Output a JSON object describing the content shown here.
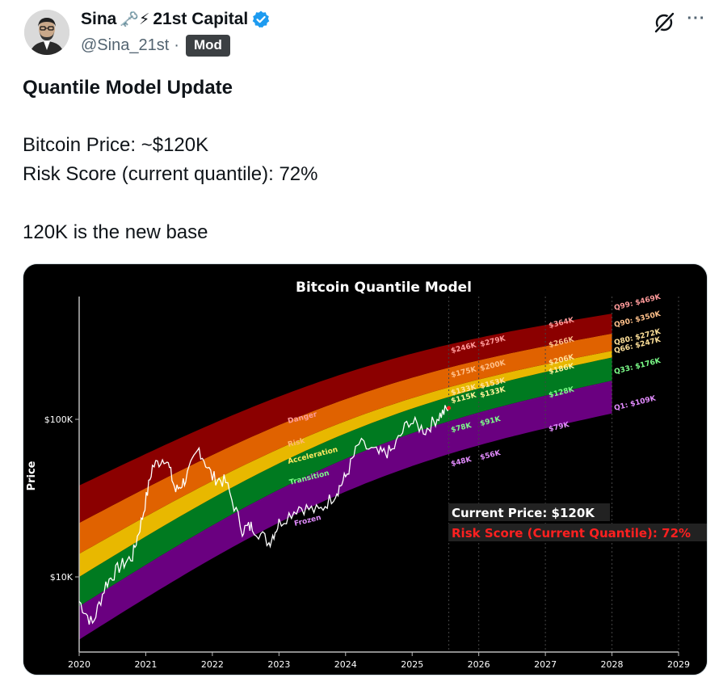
{
  "author": {
    "name": "Sina",
    "name_emojis": "🗝️⚡",
    "org": "21st Capital",
    "handle": "@Sina_21st",
    "separator": "·",
    "badge": "Mod"
  },
  "icons": {
    "verified": "verified-badge-icon",
    "grok": "grok-icon",
    "more": "more-icon",
    "more_glyph": "···"
  },
  "tweet": {
    "title": "Quantile Model Update",
    "line1": "Bitcoin Price: ~$120K",
    "line2": "Risk Score (current quantile): 72%",
    "line3": "120K is the new base"
  },
  "colors": {
    "verified": "#1d9bf0",
    "danger": "#8b0000",
    "risk": "#e06200",
    "acceleration": "#e8b800",
    "transition": "#007a20",
    "frozen": "#6a0080",
    "risk_text": "#ff2020"
  },
  "chart_data": {
    "type": "area",
    "title": "Bitcoin Quantile Model",
    "ylabel": "Price",
    "xlabel": "",
    "y_scale": "log",
    "x_ticks": [
      "2020",
      "2021",
      "2022",
      "2023",
      "2024",
      "2025",
      "2026",
      "2027",
      "2028",
      "2029"
    ],
    "y_ticks": [
      "$10K",
      "$100K"
    ],
    "band_labels": [
      "Danger",
      "Risk",
      "Acceleration",
      "Transition",
      "Frozen"
    ],
    "end_labels": [
      "Q99: $469K",
      "Q90: $350K",
      "Q80: $272K",
      "Q66: $247K",
      "Q33: $176K",
      "Q1: $109K"
    ],
    "price_labels": {
      "y2025_5": [
        "$246K",
        "$279K",
        "$175K",
        "$200K",
        "$133K",
        "$153K",
        "$115K",
        "$133K",
        "$78K",
        "$91K",
        "$48K",
        "$56K"
      ],
      "y2027": [
        "$364K",
        "$266K",
        "$206K",
        "$186K",
        "$128K",
        "$79K"
      ]
    },
    "annotations": {
      "current_price": "Current Price: $120K",
      "risk_score": "Risk Score (Current Quantile): 72%"
    },
    "quantiles_2028": {
      "Q1": 109000,
      "Q33": 176000,
      "Q66": 247000,
      "Q80": 272000,
      "Q90": 350000,
      "Q99": 469000
    },
    "quantiles_2020": {
      "Q1": 4000,
      "Q33": 6500,
      "Q66": 10000,
      "Q80": 14000,
      "Q90": 22000,
      "Q99": 38000
    },
    "price_series": [
      {
        "x": 2020.0,
        "y": 7000
      },
      {
        "x": 2020.2,
        "y": 5000
      },
      {
        "x": 2020.4,
        "y": 9000
      },
      {
        "x": 2020.6,
        "y": 11500
      },
      {
        "x": 2020.8,
        "y": 13500
      },
      {
        "x": 2020.95,
        "y": 24000
      },
      {
        "x": 2021.1,
        "y": 50000
      },
      {
        "x": 2021.3,
        "y": 58000
      },
      {
        "x": 2021.45,
        "y": 35000
      },
      {
        "x": 2021.6,
        "y": 42000
      },
      {
        "x": 2021.8,
        "y": 65000
      },
      {
        "x": 2022.0,
        "y": 43000
      },
      {
        "x": 2022.2,
        "y": 40000
      },
      {
        "x": 2022.45,
        "y": 20000
      },
      {
        "x": 2022.6,
        "y": 21000
      },
      {
        "x": 2022.85,
        "y": 16500
      },
      {
        "x": 2023.0,
        "y": 22000
      },
      {
        "x": 2023.3,
        "y": 28000
      },
      {
        "x": 2023.6,
        "y": 26000
      },
      {
        "x": 2023.85,
        "y": 34000
      },
      {
        "x": 2024.0,
        "y": 43000
      },
      {
        "x": 2024.2,
        "y": 70000
      },
      {
        "x": 2024.5,
        "y": 60000
      },
      {
        "x": 2024.7,
        "y": 63000
      },
      {
        "x": 2024.95,
        "y": 98000
      },
      {
        "x": 2025.2,
        "y": 85000
      },
      {
        "x": 2025.4,
        "y": 105000
      },
      {
        "x": 2025.55,
        "y": 118000
      }
    ]
  }
}
